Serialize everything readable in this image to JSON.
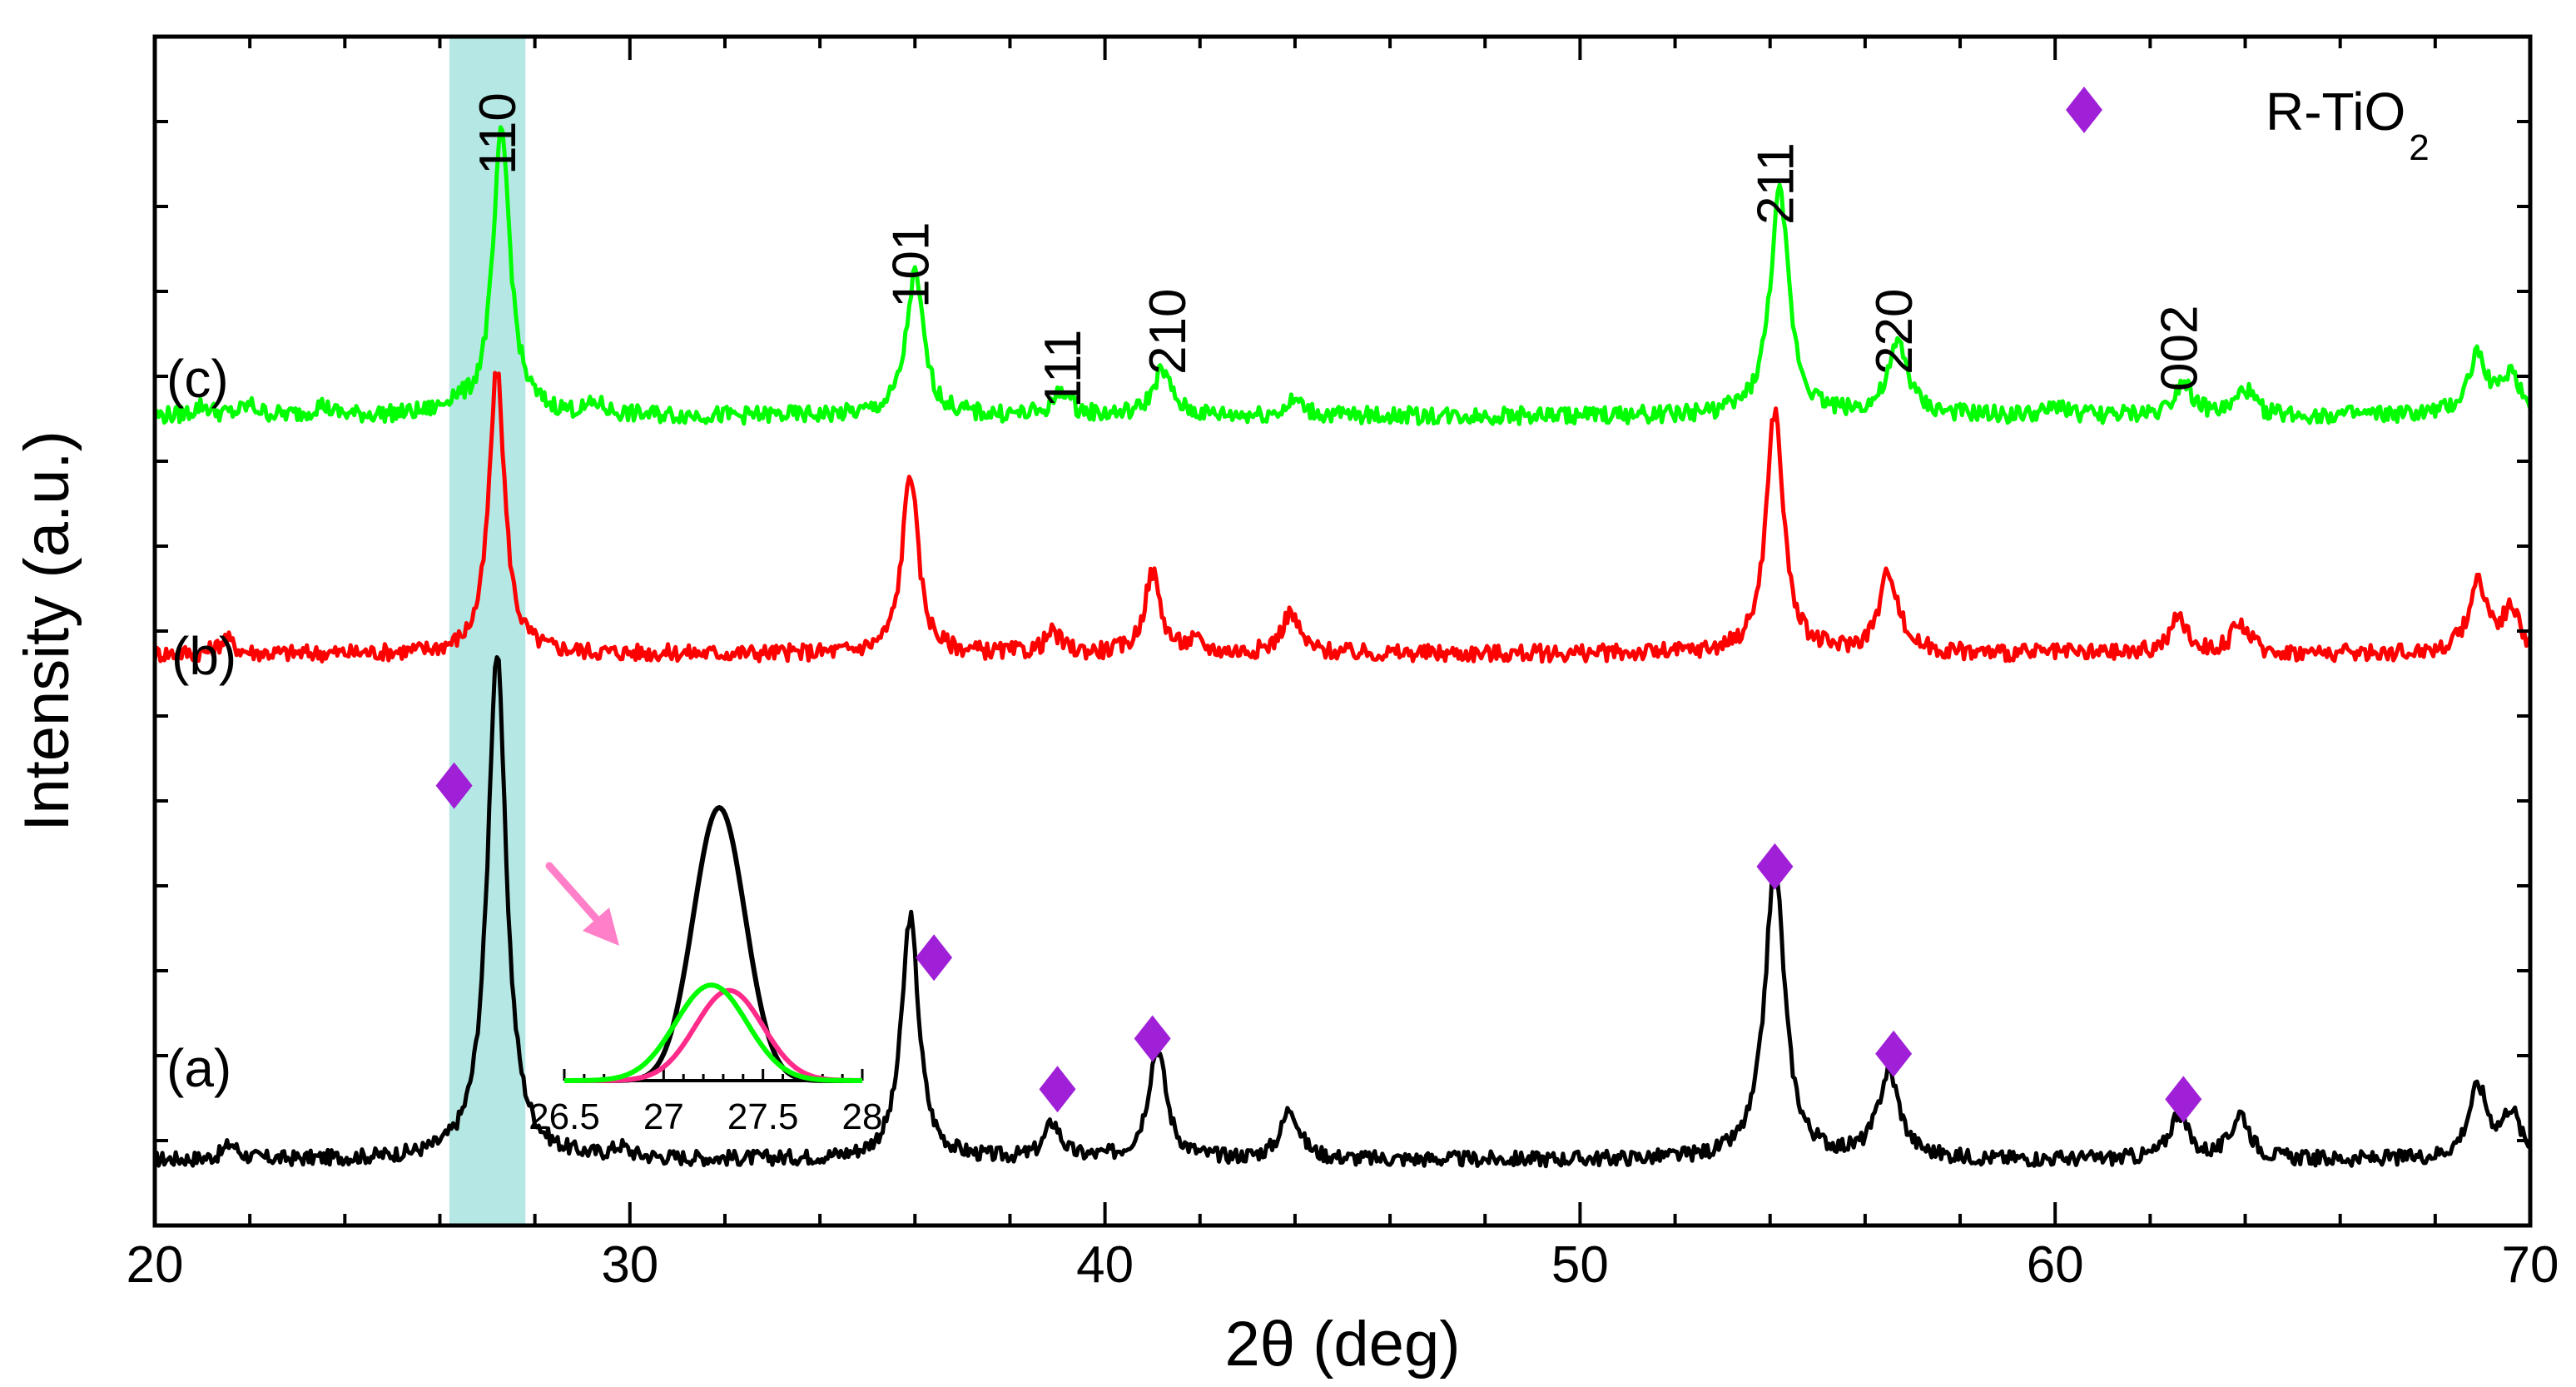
{
  "chart_data": {
    "type": "line",
    "xlabel": "2θ (deg)",
    "ylabel": "Intensity (a.u.)",
    "xlim": [
      20,
      70
    ],
    "xticks": [
      "20",
      "30",
      "40",
      "50",
      "60",
      "70"
    ],
    "y_ticks_labeled": false,
    "grid": false,
    "highlight_band": {
      "x_range": [
        26.2,
        27.8
      ],
      "color": "#b5e8e4"
    },
    "legend": {
      "position": "top-right",
      "marker": "diamond",
      "marker_color": "#a020d8",
      "label": "R-TiO",
      "label_subscript": "2"
    },
    "series": [
      {
        "label": "(a)",
        "color": "#000000",
        "baseline": 8,
        "noise": 1.5,
        "peaks": [
          [
            21.6,
            3,
            0.18
          ],
          [
            27.2,
            100,
            0.24
          ],
          [
            29.8,
            2,
            0.2
          ],
          [
            35.9,
            48,
            0.22
          ],
          [
            38.9,
            7,
            0.2
          ],
          [
            41.1,
            22,
            0.23
          ],
          [
            43.9,
            10,
            0.23
          ],
          [
            54.1,
            58,
            0.25
          ],
          [
            56.5,
            17,
            0.27
          ],
          [
            62.6,
            9,
            0.23
          ],
          [
            63.9,
            9,
            0.23
          ],
          [
            68.9,
            14,
            0.25
          ],
          [
            69.6,
            9,
            0.22
          ]
        ]
      },
      {
        "label": "(b)",
        "color": "#ff0000",
        "baseline": 108,
        "noise": 1.7,
        "peaks": [
          [
            21.5,
            3,
            0.18
          ],
          [
            27.2,
            56,
            0.2
          ],
          [
            35.9,
            36,
            0.2
          ],
          [
            38.9,
            4,
            0.2
          ],
          [
            41.0,
            16,
            0.2
          ],
          [
            41.9,
            2,
            0.2
          ],
          [
            43.9,
            8,
            0.22
          ],
          [
            54.1,
            48,
            0.22
          ],
          [
            56.5,
            16,
            0.24
          ],
          [
            62.6,
            7,
            0.22
          ],
          [
            63.9,
            6,
            0.22
          ],
          [
            68.9,
            14,
            0.24
          ],
          [
            69.6,
            8,
            0.22
          ]
        ]
      },
      {
        "label": "(c)",
        "color": "#00ff00",
        "baseline": 155,
        "noise": 1.7,
        "peaks": [
          [
            21.0,
            2,
            0.2
          ],
          [
            22.0,
            2,
            0.2
          ],
          [
            23.5,
            2,
            0.2
          ],
          [
            26.3,
            2,
            0.2
          ],
          [
            27.3,
            56,
            0.22
          ],
          [
            29.3,
            2,
            0.2
          ],
          [
            36.0,
            28,
            0.22
          ],
          [
            39.1,
            5,
            0.2
          ],
          [
            41.2,
            9,
            0.23
          ],
          [
            44.0,
            3,
            0.22
          ],
          [
            54.2,
            44,
            0.24
          ],
          [
            56.7,
            14,
            0.25
          ],
          [
            60.1,
            2,
            0.2
          ],
          [
            62.7,
            7,
            0.22
          ],
          [
            64.0,
            5,
            0.22
          ],
          [
            68.9,
            12,
            0.24
          ],
          [
            69.6,
            8,
            0.22
          ]
        ]
      }
    ],
    "hkl_labels": [
      {
        "text": "110",
        "x": 27.2
      },
      {
        "text": "101",
        "x": 35.9
      },
      {
        "text": "111",
        "x": 39.1
      },
      {
        "text": "210",
        "x": 41.3
      },
      {
        "text": "211",
        "x": 54.1
      },
      {
        "text": "220",
        "x": 56.6
      },
      {
        "text": "002",
        "x": 62.6
      }
    ],
    "markers": [
      {
        "x": 26.3,
        "y": 82
      },
      {
        "x": 36.4,
        "y": 48
      },
      {
        "x": 39.0,
        "y": 22
      },
      {
        "x": 41.0,
        "y": 32
      },
      {
        "x": 54.1,
        "y": 66
      },
      {
        "x": 56.6,
        "y": 29
      },
      {
        "x": 62.7,
        "y": 20
      }
    ],
    "inset": {
      "xlim": [
        26.5,
        28.0
      ],
      "xticks": [
        "26.5",
        "27",
        "27.5",
        "28"
      ],
      "arrow_color": "#ff80c8",
      "series": [
        {
          "color": "#000000",
          "center": 27.28,
          "amplitude": 100,
          "sigma": 0.13
        },
        {
          "color": "#ff2b8a",
          "center": 27.33,
          "amplitude": 33,
          "sigma": 0.17
        },
        {
          "color": "#00ff00",
          "center": 27.24,
          "amplitude": 35,
          "sigma": 0.18
        }
      ]
    }
  }
}
